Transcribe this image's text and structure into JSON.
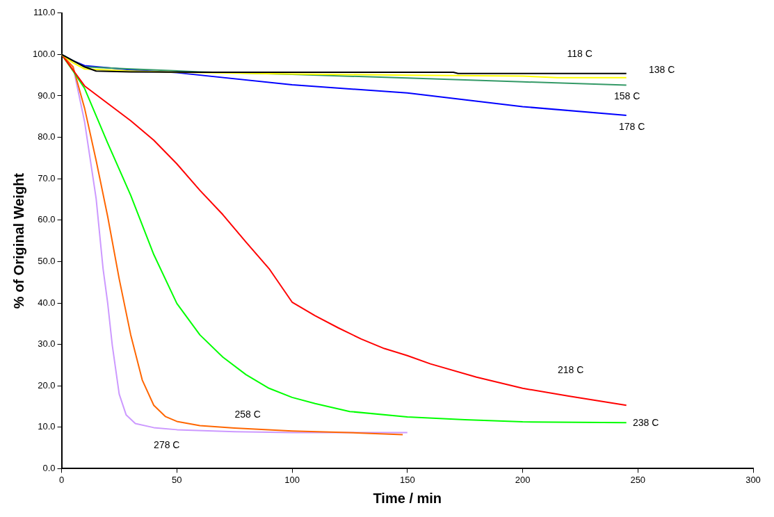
{
  "chart_data": {
    "type": "line",
    "xlabel": "Time / min",
    "ylabel": "% of Original Weight",
    "xlim": [
      0,
      300
    ],
    "xticks": [
      0,
      50,
      100,
      150,
      200,
      250,
      300
    ],
    "ylim": [
      0,
      110
    ],
    "yticks": [
      {
        "value": 0,
        "label": "0.0"
      },
      {
        "value": 10,
        "label": "10.0"
      },
      {
        "value": 20,
        "label": "20.0"
      },
      {
        "value": 30,
        "label": "30.0"
      },
      {
        "value": 40,
        "label": "40.0"
      },
      {
        "value": 50,
        "label": "50.0"
      },
      {
        "value": 60,
        "label": "60.0"
      },
      {
        "value": 70,
        "label": "70.0"
      },
      {
        "value": 80,
        "label": "80.0"
      },
      {
        "value": 90,
        "label": "90.0"
      },
      {
        "value": 100,
        "label": "100.0"
      },
      {
        "value": 110,
        "label": "110.0"
      }
    ],
    "grid": false,
    "legend": false,
    "marker": "none",
    "line_style": "solid",
    "series": [
      {
        "name": "118 C",
        "color": "#000000",
        "x": [
          0,
          5,
          10,
          15,
          30,
          60,
          100,
          170,
          172,
          200,
          245
        ],
        "values": [
          100,
          98.5,
          97,
          96,
          95.8,
          95.7,
          95.7,
          95.7,
          95.4,
          95.4,
          95.4
        ]
      },
      {
        "name": "138 C",
        "color": "#ffff00",
        "x": [
          0,
          5,
          10,
          30,
          50,
          100,
          150,
          200,
          215,
          245
        ],
        "values": [
          100,
          98,
          96.5,
          96,
          95.7,
          95.3,
          95,
          94.8,
          94.4,
          94.4
        ]
      },
      {
        "name": "158 C",
        "color": "#339966",
        "x": [
          0,
          5,
          10,
          30,
          60,
          100,
          150,
          200,
          245
        ],
        "values": [
          100,
          98.5,
          97,
          96.5,
          95.8,
          95.2,
          94.3,
          93.4,
          92.6
        ]
      },
      {
        "name": "178 C",
        "color": "#0000ff",
        "x": [
          0,
          5,
          10,
          30,
          50,
          100,
          150,
          200,
          245
        ],
        "values": [
          100,
          98.5,
          97.3,
          96.3,
          95.6,
          92.7,
          90.7,
          87.4,
          85.3
        ]
      },
      {
        "name": "218 C",
        "color": "#ff0000",
        "x": [
          0,
          10,
          20,
          30,
          40,
          50,
          60,
          70,
          80,
          90,
          100,
          110,
          120,
          130,
          140,
          150,
          160,
          180,
          200,
          220,
          245
        ],
        "values": [
          100,
          92.4,
          88.2,
          84,
          79.3,
          73.6,
          67.2,
          61.3,
          54.7,
          48.3,
          40.2,
          36.9,
          34,
          31.3,
          29,
          27.3,
          25.3,
          22.1,
          19.4,
          17.5,
          15.3
        ]
      },
      {
        "name": "238 C",
        "color": "#00ff00",
        "x": [
          0,
          5,
          10,
          20,
          30,
          40,
          50,
          60,
          70,
          80,
          90,
          100,
          110,
          125,
          150,
          175,
          200,
          245
        ],
        "values": [
          100,
          96,
          91.8,
          78.6,
          66,
          51.7,
          39.9,
          32.3,
          26.9,
          22.7,
          19.4,
          17.2,
          15.7,
          13.8,
          12.5,
          11.8,
          11.3,
          11.1
        ]
      },
      {
        "name": "258 C",
        "color": "#ff6600",
        "x": [
          0,
          5,
          10,
          15,
          20,
          25,
          30,
          35,
          40,
          45,
          50,
          60,
          75,
          100,
          130,
          148
        ],
        "values": [
          100,
          97,
          87,
          74.4,
          60.9,
          45.8,
          32.3,
          21.4,
          15.3,
          12.6,
          11.4,
          10.4,
          9.8,
          9.1,
          8.6,
          8.2
        ]
      },
      {
        "name": "278 C",
        "color": "#cc99ff",
        "x": [
          0,
          5,
          10,
          15,
          18,
          20,
          22,
          25,
          28,
          32,
          40,
          50,
          75,
          100,
          150
        ],
        "values": [
          100,
          97,
          83.7,
          65.2,
          48.3,
          40,
          29.8,
          18,
          13,
          10.9,
          9.9,
          9.4,
          8.9,
          8.7,
          8.7
        ]
      }
    ]
  }
}
